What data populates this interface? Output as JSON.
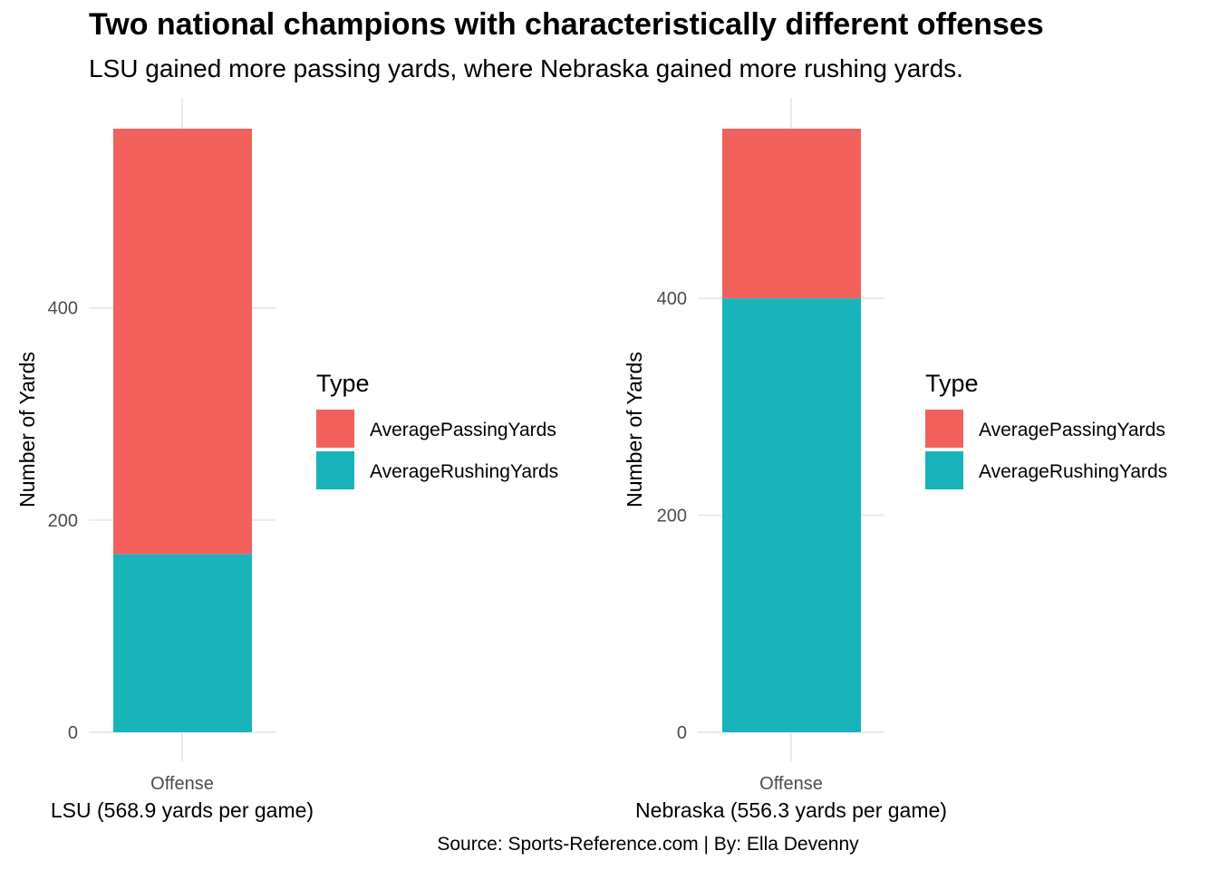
{
  "title": "Two national champions with characteristically different offenses",
  "subtitle": "LSU gained more passing yards, where Nebraska gained more rushing yards.",
  "caption": "Source: Sports-Reference.com | By: Ella Devenny",
  "colors": {
    "AveragePassingYards": "#F2615C",
    "AverageRushingYards": "#19B4B9",
    "grid": "#ebebeb"
  },
  "chart_data": [
    {
      "type": "bar",
      "stacked": true,
      "categories": [
        "Offense"
      ],
      "xlabel": "LSU (568.9 yards per game)",
      "ylabel": "Number of Yards",
      "ylim": [
        0,
        568.9
      ],
      "yticks": [
        0,
        200,
        400
      ],
      "grid": true,
      "legend": {
        "title": "Type",
        "position": "right",
        "entries": [
          "AveragePassingYards",
          "AverageRushingYards"
        ]
      },
      "series": [
        {
          "name": "AverageRushingYards",
          "values": [
            168.0
          ]
        },
        {
          "name": "AveragePassingYards",
          "values": [
            400.9
          ]
        }
      ]
    },
    {
      "type": "bar",
      "stacked": true,
      "categories": [
        "Offense"
      ],
      "xlabel": "Nebraska (556.3 yards per game)",
      "ylabel": "Number of Yards",
      "ylim": [
        0,
        556.3
      ],
      "yticks": [
        0,
        200,
        400
      ],
      "grid": true,
      "legend": {
        "title": "Type",
        "position": "right",
        "entries": [
          "AveragePassingYards",
          "AverageRushingYards"
        ]
      },
      "series": [
        {
          "name": "AverageRushingYards",
          "values": [
            400.0
          ]
        },
        {
          "name": "AveragePassingYards",
          "values": [
            156.3
          ]
        }
      ]
    }
  ]
}
